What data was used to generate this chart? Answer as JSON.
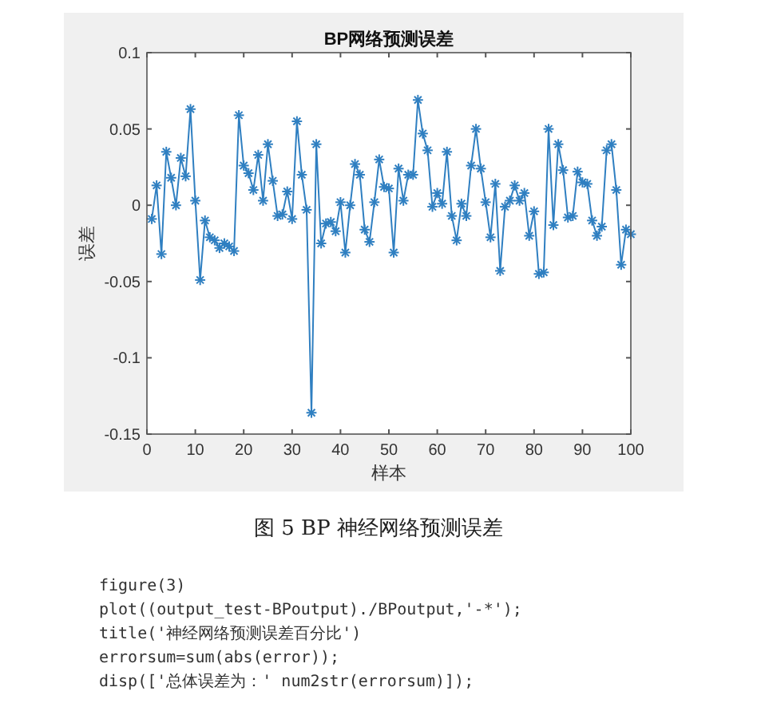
{
  "chart_data": {
    "type": "line",
    "title": "BP网络预测误差",
    "xlabel": "样本",
    "ylabel": "误差",
    "x": [
      1,
      2,
      3,
      4,
      5,
      6,
      7,
      8,
      9,
      10,
      11,
      12,
      13,
      14,
      15,
      16,
      17,
      18,
      19,
      20,
      21,
      22,
      23,
      24,
      25,
      26,
      27,
      28,
      29,
      30,
      31,
      32,
      33,
      34,
      35,
      36,
      37,
      38,
      39,
      40,
      41,
      42,
      43,
      44,
      45,
      46,
      47,
      48,
      49,
      50,
      51,
      52,
      53,
      54,
      55,
      56,
      57,
      58,
      59,
      60,
      61,
      62,
      63,
      64,
      65,
      66,
      67,
      68,
      69,
      70,
      71,
      72,
      73,
      74,
      75,
      76,
      77,
      78,
      79,
      80,
      81,
      82,
      83,
      84,
      85,
      86,
      87,
      88,
      89,
      90,
      91,
      92,
      93,
      94,
      95,
      96,
      97,
      98,
      99,
      100
    ],
    "series": [
      {
        "color": "#2f7fc1",
        "values": [
          -0.009,
          0.013,
          -0.032,
          0.035,
          0.018,
          0.0,
          0.031,
          0.019,
          0.063,
          0.003,
          -0.049,
          -0.01,
          -0.021,
          -0.023,
          -0.028,
          -0.025,
          -0.027,
          -0.03,
          0.059,
          0.026,
          0.021,
          0.01,
          0.033,
          0.003,
          0.04,
          0.016,
          -0.007,
          -0.006,
          0.009,
          -0.009,
          0.055,
          0.02,
          -0.003,
          -0.136,
          0.04,
          -0.025,
          -0.012,
          -0.011,
          -0.017,
          0.002,
          -0.031,
          0.0,
          0.027,
          0.02,
          -0.016,
          -0.024,
          0.002,
          0.03,
          0.012,
          0.011,
          -0.031,
          0.024,
          0.003,
          0.02,
          0.02,
          0.069,
          0.047,
          0.036,
          -0.001,
          0.008,
          0.001,
          0.035,
          -0.007,
          -0.023,
          0.001,
          -0.007,
          0.026,
          0.05,
          0.024,
          0.002,
          -0.021,
          0.014,
          -0.043,
          -0.001,
          0.003,
          0.013,
          0.003,
          0.008,
          -0.02,
          -0.004,
          -0.045,
          -0.044,
          0.05,
          -0.013,
          0.04,
          0.023,
          -0.008,
          -0.007,
          0.022,
          0.015,
          0.014,
          -0.01,
          -0.02,
          -0.014,
          0.036,
          0.04,
          0.01,
          -0.039,
          -0.016,
          -0.019
        ]
      }
    ],
    "xlim": [
      0,
      100
    ],
    "xticks": [
      0,
      10,
      20,
      30,
      40,
      50,
      60,
      70,
      80,
      90,
      100
    ],
    "ylim": [
      -0.15,
      0.1
    ],
    "yticks": [
      -0.15,
      -0.1,
      -0.05,
      0,
      0.05,
      0.1
    ],
    "grid": false,
    "marker": "cross",
    "line_style": "solid",
    "annotations": [
      "图 5 BP 神经网络预测误差",
      "figure(3)",
      "plot((output_test-BPoutput)./BPoutput,'-*');",
      "title('神经网络预测误差百分比')",
      "errorsum=sum(abs(error));",
      "disp(['总体误差为：' num2str(errorsum)]);"
    ]
  }
}
